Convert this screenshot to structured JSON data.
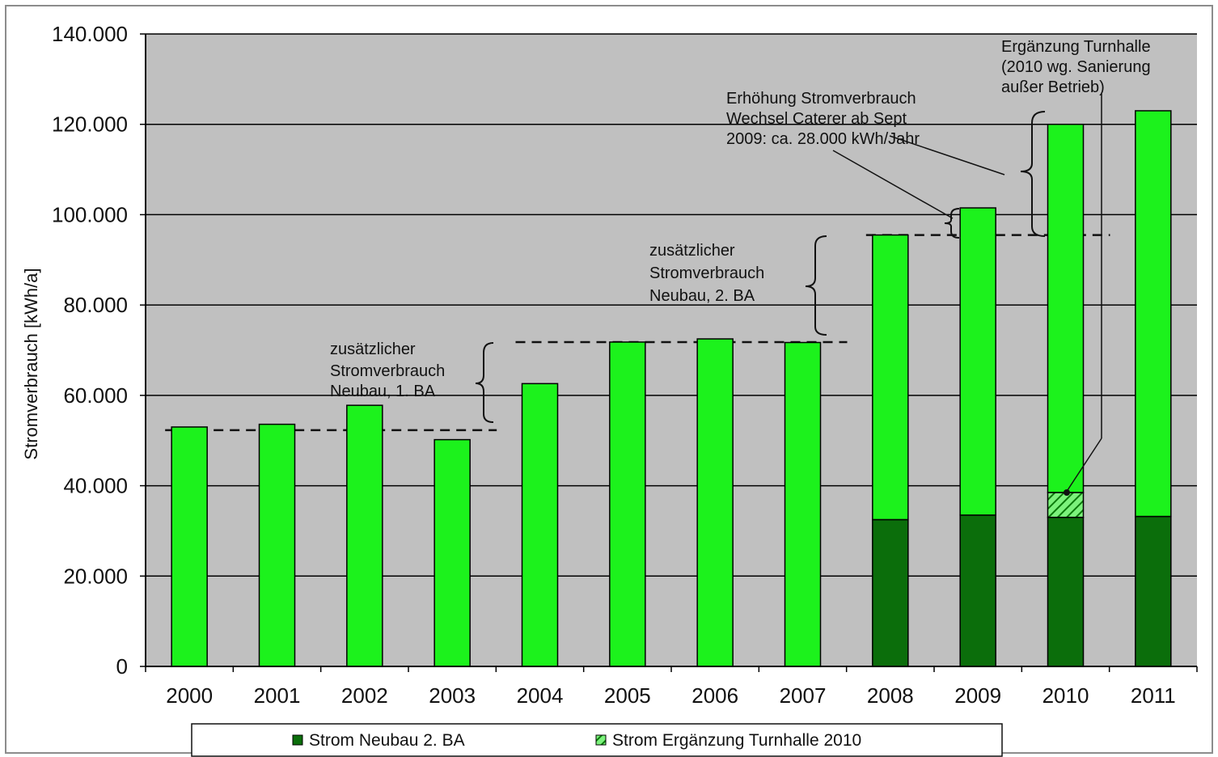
{
  "chart_data": {
    "type": "bar",
    "stacked": true,
    "title": "",
    "xlabel": "",
    "ylabel": "Stromverbrauch  [kWh/a]",
    "ylim": [
      0,
      140000
    ],
    "y_ticks": [
      0,
      20000,
      40000,
      60000,
      80000,
      100000,
      120000,
      140000
    ],
    "y_tick_labels": [
      "0",
      "20.000",
      "40.000",
      "60.000",
      "80.000",
      "100.000",
      "120.000",
      "140.000"
    ],
    "categories": [
      "2000",
      "2001",
      "2002",
      "2003",
      "2004",
      "2005",
      "2006",
      "2007",
      "2008",
      "2009",
      "2010",
      "2011"
    ],
    "series": [
      {
        "name": "Strom Neubau 2. BA",
        "color": "#0b6e0b",
        "values": [
          0,
          0,
          0,
          0,
          0,
          0,
          0,
          0,
          32500,
          33500,
          33000,
          33200
        ]
      },
      {
        "name": "Strom Ergänzung Turnhalle 2010",
        "color": "#33cc33",
        "pattern": "hatched",
        "values": [
          0,
          0,
          0,
          0,
          0,
          0,
          0,
          0,
          0,
          0,
          5500,
          0
        ]
      },
      {
        "color": "#1cf21c",
        "values": [
          53000,
          53600,
          57800,
          50200,
          62600,
          71800,
          72500,
          71700,
          63000,
          68000,
          81500,
          89800
        ]
      }
    ],
    "reference_lines": [
      {
        "y": 52300,
        "x_from": "2000",
        "x_to": "2003"
      },
      {
        "y": 71800,
        "x_from": "2004",
        "x_to": "2007"
      },
      {
        "y": 95500,
        "x_from": "2008",
        "x_to": "2010"
      }
    ],
    "annotations": [
      {
        "lines": [
          "zusätzlicher",
          "Stromverbrauch",
          "Neubau, 1. BA"
        ]
      },
      {
        "lines": [
          "zusätzlicher",
          "Stromverbrauch",
          "Neubau, 2. BA"
        ]
      },
      {
        "lines": [
          "Erhöhung Stromverbrauch",
          "Wechsel Caterer ab Sept",
          "2009: ca. 28.000 kWh/Jahr"
        ]
      },
      {
        "lines": [
          "Ergänzung Turnhalle",
          "(2010 wg. Sanierung",
          "außer Betrieb)"
        ]
      }
    ],
    "legend": {
      "position": "bottom",
      "entries": [
        "Strom Neubau 2. BA",
        "Strom Ergänzung Turnhalle 2010"
      ]
    },
    "colors": {
      "plot_background": "#c0c0c0",
      "gridline": "#000000",
      "bar_light": "#1cf21c",
      "bar_dark": "#0b6e0b",
      "bar_hatch": "#33cc33"
    },
    "grid": true
  }
}
